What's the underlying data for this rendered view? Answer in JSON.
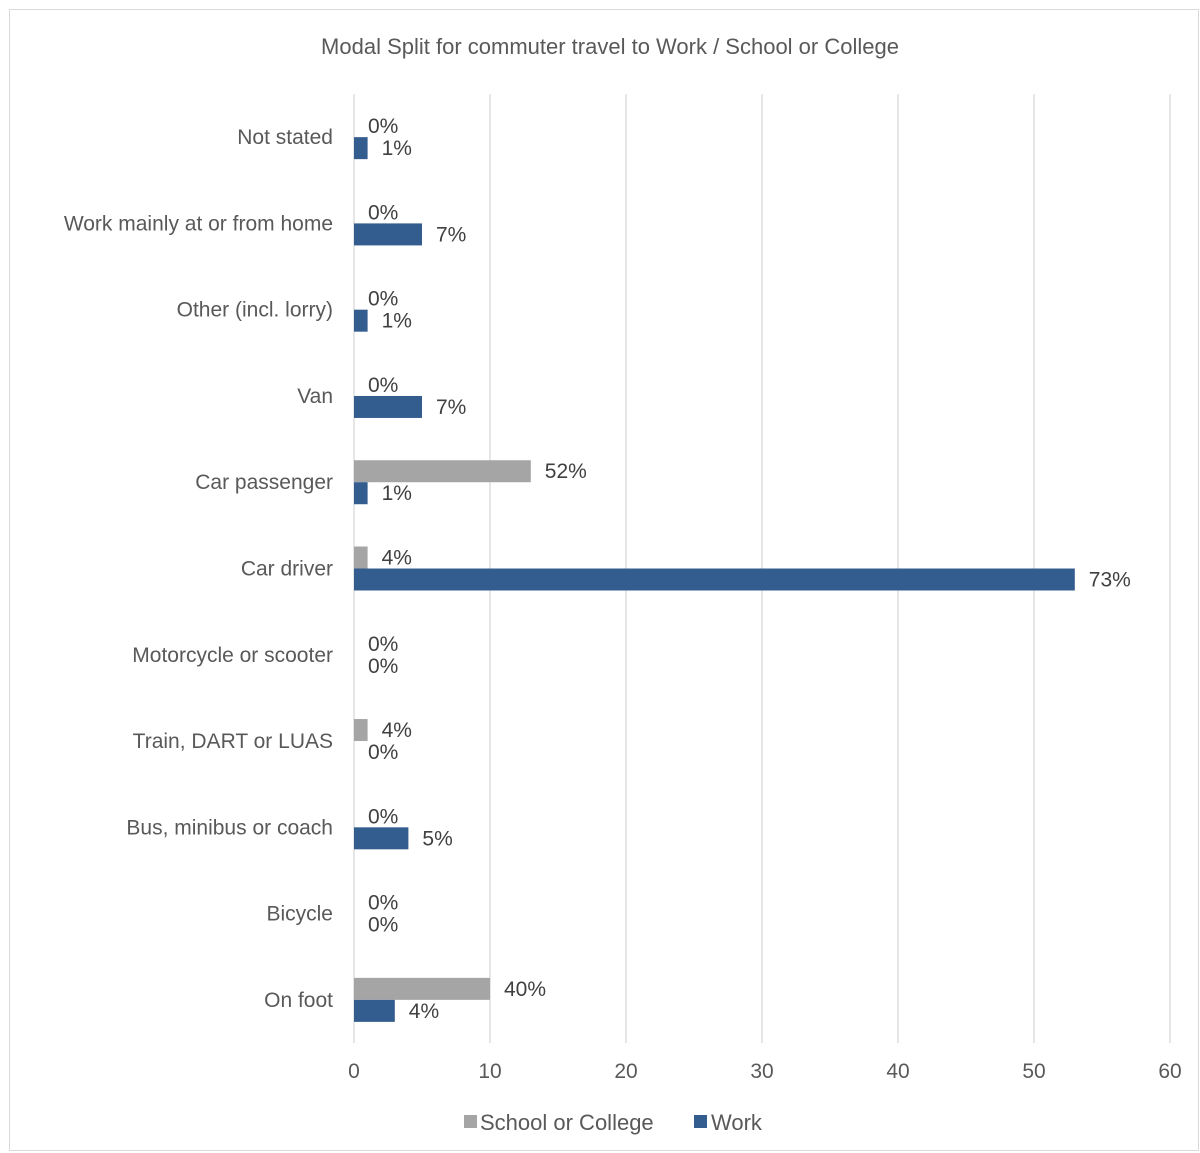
{
  "chart_data": {
    "type": "bar",
    "orientation": "horizontal",
    "title": "Modal Split for commuter travel to Work / School or College",
    "categories": [
      "Not stated",
      "Work mainly at or from home",
      "Other (incl. lorry)",
      "Van",
      "Car passenger",
      "Car driver",
      "Motorcycle or scooter",
      "Train, DART or LUAS",
      "Bus, minibus or coach",
      "Bicycle",
      "On foot"
    ],
    "series": [
      {
        "name": "School or College",
        "color": "#a5a5a5",
        "values": [
          0,
          0,
          0,
          0,
          13,
          1,
          0,
          1,
          0,
          0,
          10
        ],
        "labels": [
          "0%",
          "0%",
          "0%",
          "0%",
          "52%",
          "4%",
          "0%",
          "4%",
          "0%",
          "0%",
          "40%"
        ]
      },
      {
        "name": "Work",
        "color": "#335c8f",
        "values": [
          1,
          5,
          1,
          5,
          1,
          53,
          0,
          0,
          4,
          0,
          3
        ],
        "labels": [
          "1%",
          "7%",
          "1%",
          "7%",
          "1%",
          "73%",
          "0%",
          "0%",
          "5%",
          "0%",
          "4%"
        ]
      }
    ],
    "xlim": [
      0,
      60
    ],
    "xticks": [
      "0",
      "10",
      "20",
      "30",
      "40",
      "50",
      "60"
    ],
    "grid": true,
    "legend": "bottom"
  }
}
